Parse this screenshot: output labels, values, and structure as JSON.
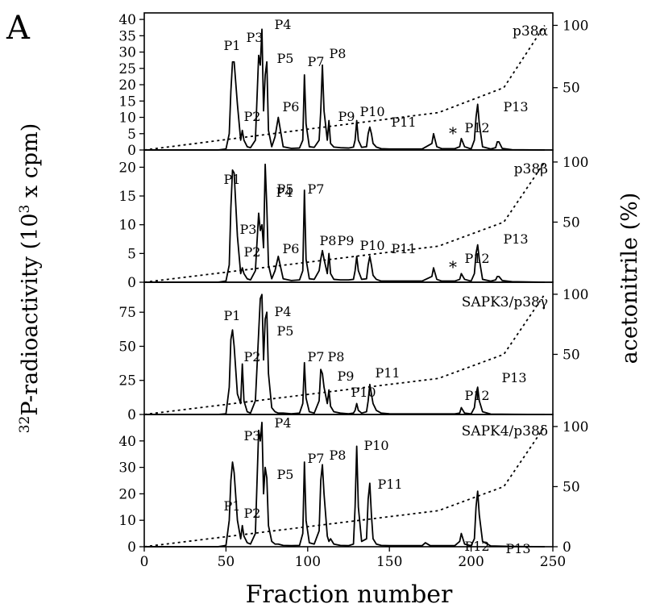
{
  "figure": {
    "panel_letter": "A",
    "left_axis_label_prefix": "32",
    "left_axis_label_main": "P-radioactivity (10",
    "left_axis_label_exp": "3",
    "left_axis_label_tail": " x cpm)",
    "right_axis_label": "acetonitrile (%)",
    "x_axis_label": "Fraction number"
  },
  "chart_data": [
    {
      "type": "line",
      "title": "p38α",
      "xlabel": "Fraction number",
      "ylabel": "32P-radioactivity (10^3 x cpm)",
      "y2label": "acetonitrile (%)",
      "xlim": [
        0,
        250
      ],
      "ylim": [
        0,
        42
      ],
      "y2lim": [
        0,
        110
      ],
      "x_ticks": [
        0,
        50,
        100,
        150,
        200,
        250
      ],
      "y_ticks": [
        0,
        5,
        10,
        15,
        20,
        25,
        30,
        35,
        40
      ],
      "y2_ticks": [
        50,
        100
      ],
      "series": [
        {
          "kind": "radioactivity",
          "x": [
            0,
            45,
            50,
            52,
            53,
            54,
            55,
            57,
            59,
            60,
            61,
            63,
            65,
            68,
            70,
            71,
            72,
            73,
            74,
            75,
            76,
            78,
            80,
            82,
            85,
            90,
            95,
            97,
            98,
            99,
            101,
            104,
            107,
            108,
            109,
            110,
            112,
            113,
            114,
            116,
            120,
            125,
            128,
            129,
            130,
            131,
            133,
            136,
            137,
            138,
            139,
            140,
            142,
            145,
            150,
            160,
            170,
            176,
            177,
            178,
            179,
            182,
            190,
            193,
            194,
            196,
            200,
            202,
            203,
            204,
            205,
            207,
            212,
            215,
            216,
            217,
            219,
            225,
            245
          ],
          "y": [
            0,
            0,
            0.3,
            5,
            18,
            27,
            27,
            14,
            3,
            6,
            3,
            1,
            0.7,
            3,
            29,
            26,
            37,
            12,
            23,
            27,
            6,
            1,
            4,
            10,
            1,
            0.5,
            0.6,
            3,
            23,
            8,
            1,
            0.8,
            3,
            12,
            26,
            12,
            3,
            9,
            2,
            0.9,
            0.7,
            0.6,
            0.9,
            3,
            9,
            3,
            0.8,
            1,
            5,
            7,
            5,
            2,
            0.9,
            0.4,
            0.3,
            0.3,
            0.3,
            2,
            5,
            3,
            1,
            0.4,
            0.4,
            1,
            3.5,
            1,
            0.3,
            3,
            10,
            14,
            8,
            1,
            0.3,
            0.7,
            2.5,
            2.5,
            0.5,
            0.1,
            0
          ]
        },
        {
          "kind": "acetonitrile",
          "x": [
            0,
            180,
            220,
            245
          ],
          "y": [
            0,
            30,
            50,
            100
          ]
        }
      ],
      "peak_labels": [
        "P1",
        "P2",
        "P3",
        "P4",
        "P5",
        "P6",
        "P7",
        "P8",
        "P9",
        "P10",
        "P11",
        "P12",
        "P13"
      ],
      "annotations": [
        "*"
      ]
    },
    {
      "type": "line",
      "title": "p38β",
      "xlabel": "Fraction number",
      "ylabel": "32P-radioactivity (10^3 x cpm)",
      "y2label": "acetonitrile (%)",
      "xlim": [
        0,
        250
      ],
      "ylim": [
        0,
        23
      ],
      "y2lim": [
        0,
        110
      ],
      "x_ticks": [
        0,
        50,
        100,
        150,
        200,
        250
      ],
      "y_ticks": [
        0,
        5,
        10,
        15,
        20
      ],
      "y2_ticks": [
        50,
        100
      ],
      "series": [
        {
          "kind": "radioactivity",
          "x": [
            0,
            45,
            50,
            52,
            53,
            54,
            55,
            57,
            59,
            60,
            61,
            63,
            65,
            68,
            70,
            71,
            72,
            73,
            74,
            75,
            76,
            78,
            80,
            82,
            85,
            90,
            95,
            97,
            98,
            99,
            101,
            104,
            107,
            108,
            109,
            110,
            112,
            113,
            114,
            116,
            120,
            125,
            128,
            129,
            130,
            131,
            133,
            136,
            137,
            138,
            139,
            140,
            142,
            145,
            150,
            160,
            170,
            176,
            177,
            178,
            179,
            182,
            190,
            193,
            194,
            196,
            200,
            202,
            203,
            204,
            205,
            207,
            212,
            215,
            216,
            217,
            219,
            225,
            245
          ],
          "y": [
            0,
            0,
            0.2,
            3,
            13,
            19.5,
            19,
            8,
            1.5,
            2.5,
            1.5,
            0.6,
            0.4,
            2,
            12,
            9,
            10,
            6,
            20.5,
            13,
            3,
            0.6,
            2,
            4.5,
            0.6,
            0.3,
            0.4,
            2,
            16,
            4,
            0.6,
            0.5,
            2,
            4,
            5.5,
            4,
            1.5,
            5,
            1.5,
            0.5,
            0.4,
            0.4,
            0.5,
            2,
            4.5,
            2,
            0.5,
            0.6,
            3,
            4.5,
            3,
            1.2,
            0.5,
            0.2,
            0.2,
            0.2,
            0.2,
            1,
            2.5,
            1.5,
            0.5,
            0.2,
            0.2,
            0.5,
            1.5,
            0.5,
            0.2,
            1.5,
            5,
            6.5,
            4,
            0.5,
            0.2,
            0.4,
            1,
            1,
            0.3,
            0.1,
            0
          ]
        },
        {
          "kind": "acetonitrile",
          "x": [
            0,
            180,
            220,
            245
          ],
          "y": [
            0,
            30,
            50,
            100
          ]
        }
      ],
      "peak_labels": [
        "P1",
        "P2",
        "P3",
        "P4",
        "P5",
        "P6",
        "P7",
        "P8",
        "P9",
        "P10",
        "P11",
        "P12",
        "P13"
      ],
      "annotations": [
        "*"
      ]
    },
    {
      "type": "line",
      "title": "SAPK3/p38γ",
      "xlabel": "Fraction number",
      "ylabel": "32P-radioactivity (10^3 x cpm)",
      "y2label": "acetonitrile (%)",
      "xlim": [
        0,
        250
      ],
      "ylim": [
        0,
        97
      ],
      "y2lim": [
        0,
        110
      ],
      "x_ticks": [
        0,
        50,
        100,
        150,
        200,
        250
      ],
      "y_ticks": [
        0,
        25,
        50,
        75
      ],
      "y2_ticks": [
        50,
        100
      ],
      "series": [
        {
          "kind": "radioactivity",
          "x": [
            0,
            45,
            50,
            52,
            53,
            54,
            55,
            57,
            59,
            60,
            61,
            63,
            65,
            68,
            70,
            71,
            72,
            73,
            74,
            75,
            76,
            78,
            80,
            82,
            85,
            90,
            95,
            97,
            98,
            99,
            101,
            104,
            107,
            108,
            109,
            110,
            112,
            113,
            114,
            116,
            120,
            125,
            128,
            129,
            130,
            131,
            133,
            136,
            137,
            138,
            139,
            140,
            142,
            145,
            150,
            160,
            170,
            190,
            193,
            194,
            196,
            200,
            202,
            203,
            204,
            205,
            207,
            212,
            225,
            245
          ],
          "y": [
            0,
            0,
            0.5,
            20,
            55,
            62,
            50,
            15,
            8,
            37,
            10,
            2,
            1,
            10,
            60,
            85,
            88,
            40,
            70,
            75,
            30,
            5,
            2,
            1,
            1,
            0.5,
            1,
            8,
            38,
            12,
            2,
            1,
            10,
            33,
            30,
            20,
            8,
            18,
            6,
            2,
            1,
            0.5,
            1,
            3,
            8,
            3,
            1,
            2,
            10,
            22,
            15,
            8,
            3,
            1,
            0.5,
            0.4,
            0.4,
            0.4,
            1,
            5,
            1,
            0.4,
            5,
            15,
            20,
            10,
            2,
            0.3,
            0.1,
            0
          ]
        },
        {
          "kind": "acetonitrile",
          "x": [
            0,
            180,
            220,
            245
          ],
          "y": [
            0,
            30,
            50,
            100
          ]
        }
      ],
      "peak_labels": [
        "P1",
        "P2",
        "P4",
        "P5",
        "P7",
        "P8",
        "P9",
        "P10",
        "P11",
        "P12",
        "P13"
      ],
      "annotations": []
    },
    {
      "type": "line",
      "title": "SAPK4/p38δ",
      "xlabel": "Fraction number",
      "ylabel": "32P-radioactivity (10^3 x cpm)",
      "y2label": "acetonitrile (%)",
      "xlim": [
        0,
        250
      ],
      "ylim": [
        0,
        50
      ],
      "y2lim": [
        0,
        110
      ],
      "x_ticks": [
        0,
        50,
        100,
        150,
        200,
        250
      ],
      "y_ticks": [
        0,
        10,
        20,
        30,
        40
      ],
      "y2_ticks": [
        0,
        50,
        100
      ],
      "series": [
        {
          "kind": "radioactivity",
          "x": [
            0,
            45,
            50,
            52,
            53,
            54,
            55,
            57,
            59,
            60,
            61,
            63,
            65,
            68,
            70,
            71,
            72,
            73,
            74,
            75,
            76,
            78,
            80,
            82,
            85,
            90,
            95,
            97,
            98,
            99,
            101,
            104,
            107,
            108,
            109,
            110,
            112,
            113,
            114,
            116,
            120,
            125,
            128,
            129,
            130,
            131,
            133,
            136,
            137,
            138,
            139,
            140,
            142,
            145,
            150,
            160,
            170,
            172,
            175,
            190,
            193,
            194,
            196,
            200,
            202,
            203,
            204,
            205,
            207,
            212,
            225,
            245
          ],
          "y": [
            0,
            0,
            0.5,
            10,
            25,
            32,
            28,
            10,
            3,
            8,
            4,
            1.5,
            1,
            5,
            44,
            40,
            47,
            20,
            30,
            26,
            8,
            2,
            1,
            1,
            0.5,
            0.4,
            0.5,
            5,
            32,
            10,
            1.5,
            1,
            6,
            25,
            31,
            20,
            4,
            2,
            3,
            1,
            0.5,
            0.4,
            1,
            15,
            38,
            15,
            2,
            3,
            18,
            24,
            12,
            3,
            1,
            0.5,
            0.4,
            0.4,
            0.4,
            1.5,
            0.4,
            0.4,
            2,
            5,
            1,
            0.4,
            3,
            15,
            21,
            12,
            2,
            0.3,
            0.1,
            0
          ]
        },
        {
          "kind": "acetonitrile",
          "x": [
            0,
            180,
            220,
            245
          ],
          "y": [
            0,
            30,
            50,
            100
          ]
        }
      ],
      "peak_labels": [
        "P1",
        "P2",
        "P3",
        "P4",
        "P5",
        "P7",
        "P8",
        "P10",
        "P11",
        "P12",
        "P13"
      ],
      "annotations": []
    }
  ]
}
